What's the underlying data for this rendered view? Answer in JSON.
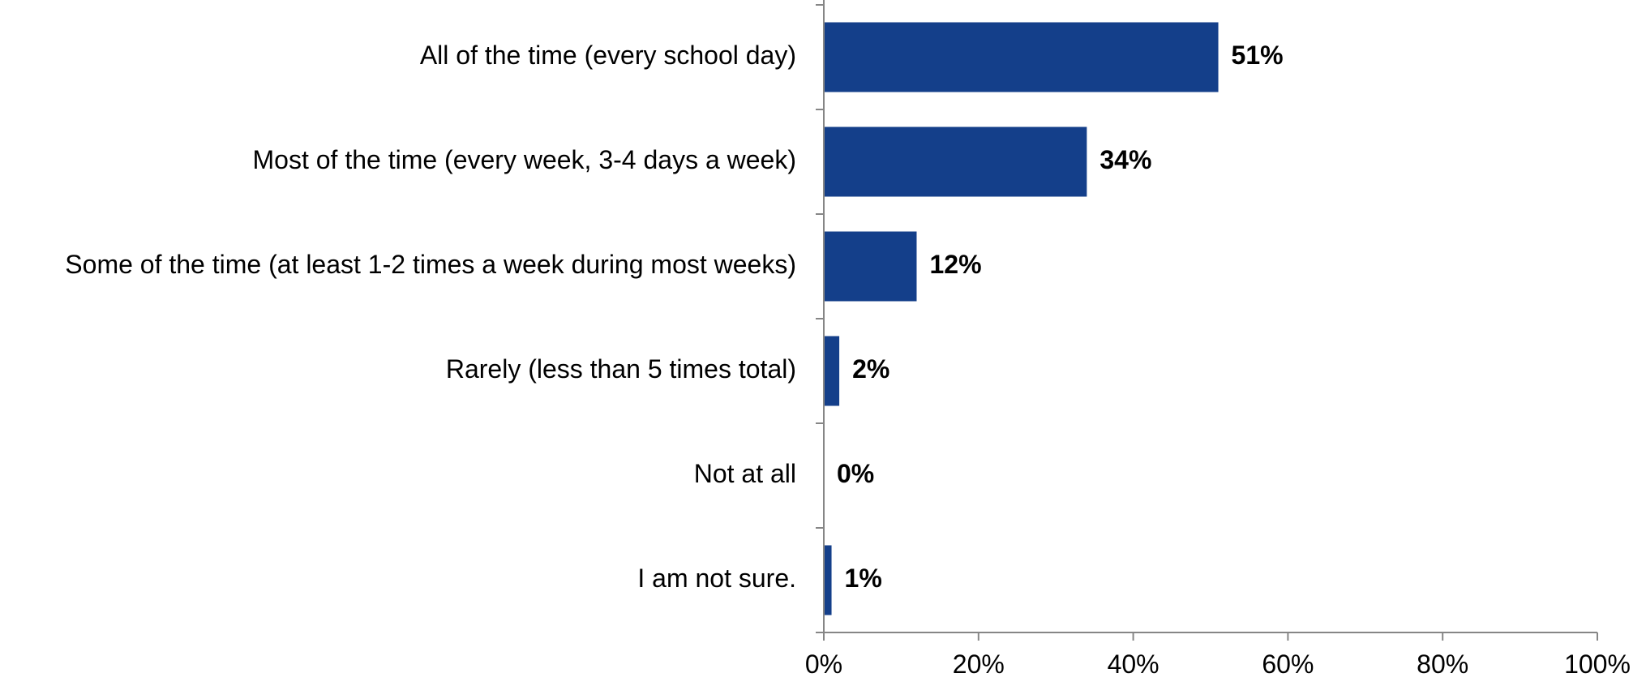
{
  "chart_data": {
    "type": "bar",
    "orientation": "horizontal",
    "categories": [
      "All of the time (every school day)",
      "Most of the time (every week, 3-4 days a week)",
      "Some of the time (at least 1-2 times a week during most weeks)",
      "Rarely (less than 5 times total)",
      "Not at all",
      "I am not sure."
    ],
    "values": [
      51,
      34,
      12,
      2,
      0,
      1
    ],
    "value_labels": [
      "51%",
      "34%",
      "12%",
      "2%",
      "0%",
      "1%"
    ],
    "xlim": [
      0,
      100
    ],
    "x_ticks": [
      0,
      20,
      40,
      60,
      80,
      100
    ],
    "x_tick_labels": [
      "0%",
      "20%",
      "40%",
      "60%",
      "80%",
      "100%"
    ],
    "title": "",
    "xlabel": "",
    "ylabel": "",
    "grid": false,
    "legend": "none",
    "bar_color": "#143f8a",
    "axis_color": "#868686"
  }
}
